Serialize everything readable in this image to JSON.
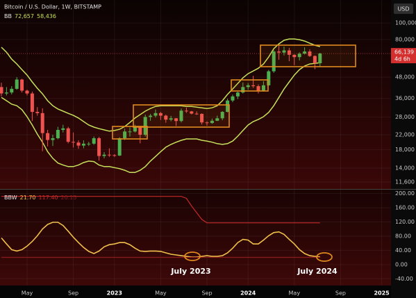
{
  "chart_data": [
    {
      "type": "candlestick",
      "title": "Bitcoin / U.S. Dollar, 1W, BITSTAMP",
      "currency": "USD",
      "last_label": "66,139",
      "countdown": "4d 6h",
      "log": true,
      "grid": true,
      "up_color": "#4caf50",
      "down_color": "#ef5350",
      "ylim": [
        10560,
        136600
      ],
      "yticks": [
        {
          "value": 100000,
          "label": "100,000"
        },
        {
          "value": 80000,
          "label": "80,000"
        },
        {
          "value": 48000,
          "label": "48,000"
        },
        {
          "value": 36000,
          "label": "36,000"
        },
        {
          "value": 28000,
          "label": "28,000"
        },
        {
          "value": 22000,
          "label": "22,000"
        },
        {
          "value": 18000,
          "label": "18,000"
        },
        {
          "value": 14000,
          "label": "14,000"
        },
        {
          "value": 11600,
          "label": "11,600"
        }
      ],
      "open": [
        42000,
        38500,
        39000,
        41000,
        46500,
        40000,
        38500,
        30000,
        29500,
        22500,
        20500,
        21000,
        23500,
        24000,
        20000,
        19800,
        19000,
        19500,
        19500,
        21000,
        16500,
        16800,
        16700,
        16600,
        21000,
        23000,
        23000,
        24500,
        22000,
        28000,
        28500,
        29500,
        28500,
        27000,
        27500,
        26500,
        30500,
        30200,
        29300,
        29200,
        26000,
        25800,
        26600,
        27500,
        30000,
        35000,
        37000,
        39000,
        42000,
        43000,
        42500,
        40000,
        43000,
        52000,
        68000,
        67000,
        69000,
        65000,
        63000,
        66000,
        68000,
        64000,
        58000
      ],
      "high": [
        44500,
        42000,
        42500,
        48000,
        47000,
        40500,
        39500,
        32000,
        31500,
        23500,
        22000,
        24500,
        25200,
        24500,
        22700,
        20400,
        20400,
        20000,
        21500,
        21400,
        17400,
        18300,
        16900,
        21300,
        23900,
        24300,
        25200,
        24600,
        28900,
        29200,
        31000,
        30000,
        28900,
        28400,
        27600,
        31400,
        31800,
        30400,
        30200,
        29400,
        26400,
        27400,
        28500,
        30300,
        35900,
        37900,
        39500,
        44700,
        44300,
        48900,
        43500,
        45500,
        53000,
        69200,
        73800,
        72700,
        71400,
        65500,
        67200,
        71900,
        70000,
        64500,
        66800
      ],
      "low": [
        37000,
        37500,
        38000,
        40500,
        39000,
        37500,
        26500,
        28500,
        17600,
        18800,
        18900,
        20700,
        22700,
        19600,
        18500,
        18200,
        18300,
        18900,
        19200,
        15500,
        16000,
        16300,
        16300,
        16500,
        20500,
        21500,
        22700,
        19600,
        21500,
        26600,
        27800,
        26900,
        25900,
        26400,
        24800,
        26000,
        29600,
        29000,
        28800,
        25300,
        24900,
        25500,
        26500,
        26800,
        29800,
        34200,
        35700,
        38500,
        40500,
        41500,
        38500,
        39500,
        42800,
        50900,
        60800,
        64500,
        59600,
        56500,
        60200,
        65300,
        63200,
        53500,
        55000
      ],
      "close": [
        38500,
        39000,
        41000,
        46500,
        40000,
        38500,
        30000,
        29500,
        22500,
        20500,
        21000,
        23500,
        24000,
        20000,
        19800,
        19000,
        19500,
        19500,
        21000,
        16500,
        16800,
        16700,
        16600,
        21000,
        23000,
        23000,
        24500,
        22000,
        28000,
        28500,
        29500,
        28500,
        27000,
        27500,
        26500,
        30500,
        30200,
        29300,
        29200,
        26000,
        25800,
        26600,
        27500,
        30000,
        35000,
        37000,
        39000,
        42000,
        43000,
        42500,
        40000,
        43000,
        52000,
        68000,
        67000,
        69000,
        65000,
        63000,
        66000,
        68000,
        64000,
        58000,
        66139
      ],
      "bands": {
        "name": "BB",
        "color": "#c6e25a",
        "last_labels": [
          "72,657",
          "58,436"
        ],
        "upper": [
          72000,
          67300,
          61300,
          57400,
          53200,
          49400,
          45000,
          41300,
          38300,
          34900,
          32600,
          31200,
          30300,
          29400,
          28600,
          27600,
          26300,
          25100,
          24400,
          23900,
          23500,
          23100,
          23300,
          23700,
          24600,
          26000,
          27600,
          28900,
          30300,
          31400,
          32300,
          32600,
          32600,
          32600,
          32600,
          32600,
          32300,
          32300,
          32000,
          31700,
          31400,
          31700,
          32600,
          34900,
          38000,
          40900,
          44100,
          47600,
          50300,
          52200,
          54200,
          57400,
          63100,
          70600,
          75400,
          79100,
          80600,
          80600,
          79800,
          78300,
          76100,
          74000,
          72657
        ],
        "lower": [
          36500,
          34900,
          33300,
          32600,
          30900,
          28100,
          25100,
          22200,
          19900,
          17500,
          16000,
          15000,
          14600,
          14300,
          14300,
          14600,
          15100,
          15400,
          15300,
          14600,
          14300,
          14300,
          14100,
          13900,
          13600,
          13200,
          13200,
          13600,
          14300,
          15400,
          16400,
          17500,
          18600,
          19300,
          19900,
          20400,
          20800,
          20800,
          20800,
          20400,
          20200,
          19900,
          19500,
          19300,
          19500,
          20200,
          21600,
          23300,
          25100,
          26300,
          27100,
          28100,
          29800,
          32600,
          36500,
          40900,
          45000,
          49400,
          53200,
          55800,
          57400,
          57900,
          58436
        ]
      }
    },
    {
      "type": "line",
      "grid": true,
      "ylim": [
        -59,
        211
      ],
      "yticks": [
        {
          "value": 200,
          "label": "200.00"
        },
        {
          "value": 160,
          "label": "160.00"
        },
        {
          "value": 120,
          "label": "120.00"
        },
        {
          "value": 80,
          "label": "80.00"
        },
        {
          "value": 40,
          "label": "40.00"
        },
        {
          "value": 0,
          "label": "0.00"
        },
        {
          "value": -40,
          "label": "-40.00"
        }
      ],
      "categories": [
        null,
        null,
        null,
        null,
        null,
        "May",
        null,
        null,
        null,
        null,
        null,
        null,
        null,
        null,
        "Sep",
        null,
        null,
        null,
        null,
        null,
        null,
        null,
        "2023",
        null,
        null,
        null,
        null,
        null,
        null,
        null,
        null,
        "May",
        null,
        null,
        null,
        null,
        null,
        null,
        null,
        null,
        "Sep",
        null,
        null,
        null,
        null,
        null,
        null,
        null,
        "2024",
        null,
        null,
        null,
        null,
        null,
        null,
        null,
        null,
        "May",
        null,
        null,
        null,
        null,
        null,
        null,
        null,
        null,
        "Sep",
        null,
        null,
        null,
        null,
        null,
        null,
        null,
        "2025"
      ],
      "series": [
        {
          "name": "BBW",
          "color": "#f0c04a",
          "last_label": "21.70",
          "values": [
            75,
            58,
            42,
            38,
            42,
            52,
            65,
            81,
            100,
            113,
            119,
            119,
            110,
            94,
            77,
            62,
            48,
            37,
            31,
            38,
            50,
            56,
            58,
            62,
            62,
            56,
            46,
            38,
            37,
            38,
            38,
            37,
            33,
            29,
            27,
            25,
            23,
            21,
            21,
            23,
            25,
            23,
            23,
            25,
            33,
            46,
            62,
            71,
            69,
            58,
            58,
            69,
            81,
            90,
            92,
            85,
            71,
            58,
            42,
            31,
            25,
            23,
            21.7,
            null,
            null,
            null,
            null,
            null,
            null,
            null,
            null,
            null,
            null,
            null,
            null
          ]
        },
        {
          "color": "#c62828",
          "last_label": "117.40",
          "values": [
            192,
            192,
            192,
            192,
            192,
            192,
            192,
            192,
            192,
            192,
            192,
            192,
            192,
            192,
            192,
            192,
            192,
            192,
            192,
            192,
            192,
            192,
            192,
            192,
            192,
            192,
            192,
            192,
            192,
            192,
            192,
            192,
            192,
            192,
            192,
            192,
            186.5,
            165,
            146,
            127,
            117.4,
            117.4,
            117.4,
            117.4,
            117.4,
            117.4,
            117.4,
            117.4,
            117.4,
            117.4,
            117.4,
            117.4,
            117.4,
            117.4,
            117.4,
            117.4,
            117.4,
            117.4,
            117.4,
            117.4,
            117.4,
            117.4,
            117.4,
            null,
            null,
            null,
            null,
            null,
            null,
            null,
            null,
            null,
            null,
            null,
            null
          ]
        },
        {
          "color": "#8e1b1b",
          "last_label": "20.15",
          "values": [
            20.15,
            20.15,
            20.15,
            20.15,
            20.15,
            20.15,
            20.15,
            20.15,
            20.15,
            20.15,
            20.15,
            20.15,
            20.15,
            20.15,
            20.15,
            20.15,
            20.15,
            20.15,
            20.15,
            20.15,
            20.15,
            20.15,
            20.15,
            20.15,
            20.15,
            20.15,
            20.15,
            20.15,
            20.15,
            20.15,
            20.15,
            20.15,
            20.15,
            20.15,
            20.15,
            20.15,
            20.15,
            20.15,
            20.15,
            20.15,
            20.15,
            20.15,
            20.15,
            20.15,
            20.15,
            20.15,
            20.15,
            20.15,
            20.15,
            20.15,
            20.15,
            20.15,
            20.15,
            20.15,
            20.15,
            20.15,
            20.15,
            20.15,
            20.15,
            20.15,
            20.15,
            20.15,
            20.15,
            null,
            null,
            null,
            null,
            null,
            null,
            null,
            null,
            null,
            null,
            null,
            null
          ]
        }
      ],
      "annotations": [
        "July 2023",
        "July 2024"
      ]
    }
  ]
}
